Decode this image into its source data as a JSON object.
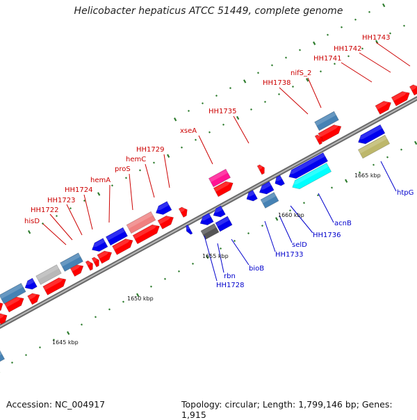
{
  "title": "Helicobacter hepaticus ATCC 51449, complete genome",
  "footer": {
    "accession": "Accession: NC_004917",
    "topology": "Topology: circular; Length: 1,799,146 bp; Genes: 1,915"
  },
  "colors": {
    "forward_label": "#cc0000",
    "reverse_label": "#0000cc",
    "backbone": "#888888",
    "tick_minor": "#2f7d2f"
  },
  "scale_labels": [
    "1645 kbp",
    "1650 kbp",
    "1655 kbp",
    "1660 kbp",
    "1665 kbp"
  ],
  "forward_labels": [
    "hisD",
    "HH1722",
    "HH1723",
    "HH1724",
    "hemA",
    "proS",
    "hemC",
    "HH1729",
    "xseA",
    "HH1735",
    "HH1738",
    "nifS_2",
    "HH1741",
    "HH1742",
    "HH1743"
  ],
  "reverse_labels": [
    "HH1728",
    "rbn",
    "bioB",
    "HH1733",
    "selD",
    "HH1736",
    "acnB",
    "htpG"
  ]
}
